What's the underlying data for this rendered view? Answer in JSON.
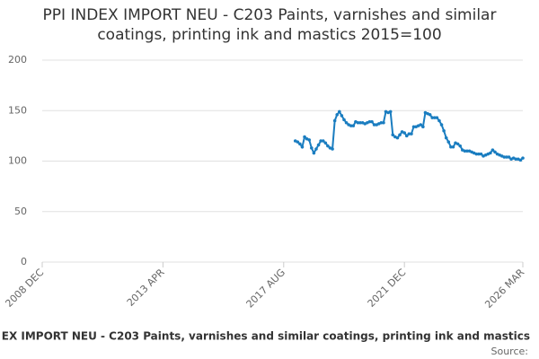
{
  "chart_data": {
    "type": "line",
    "title": "PPI INDEX IMPORT NEU - C203 Paints, varnishes and similar coatings, printing ink and mastics 2015=100",
    "x": [
      "2018 JAN",
      "2018 FEB",
      "2018 MAR",
      "2018 APR",
      "2018 MAY",
      "2018 JUN",
      "2018 JUL",
      "2018 AUG",
      "2018 SEP",
      "2018 OCT",
      "2018 NOV",
      "2018 DEC",
      "2019 JAN",
      "2019 FEB",
      "2019 MAR",
      "2019 APR",
      "2019 MAY",
      "2019 JUN",
      "2019 JUL",
      "2019 AUG",
      "2019 SEP",
      "2019 OCT",
      "2019 NOV",
      "2019 DEC",
      "2020 JAN",
      "2020 FEB",
      "2020 MAR",
      "2020 APR",
      "2020 MAY",
      "2020 JUN",
      "2020 JUL",
      "2020 AUG",
      "2020 SEP",
      "2020 OCT",
      "2020 NOV",
      "2020 DEC",
      "2021 JAN",
      "2021 FEB",
      "2021 MAR",
      "2021 APR",
      "2021 MAY",
      "2021 JUN",
      "2021 JUL",
      "2021 AUG",
      "2021 SEP",
      "2021 OCT",
      "2021 NOV",
      "2021 DEC",
      "2022 JAN",
      "2022 FEB",
      "2022 MAR",
      "2022 APR",
      "2022 MAY",
      "2022 JUN",
      "2022 JUL",
      "2022 AUG",
      "2022 SEP",
      "2022 OCT",
      "2022 NOV",
      "2022 DEC",
      "2023 JAN",
      "2023 FEB",
      "2023 MAR",
      "2023 APR",
      "2023 MAY",
      "2023 JUN",
      "2023 JUL",
      "2023 AUG",
      "2023 SEP",
      "2023 OCT",
      "2023 NOV",
      "2023 DEC",
      "2024 JAN",
      "2024 FEB",
      "2024 MAR",
      "2024 APR",
      "2024 MAY",
      "2024 JUN",
      "2024 JUL",
      "2024 AUG",
      "2024 SEP",
      "2024 OCT",
      "2024 NOV",
      "2024 DEC",
      "2025 JAN",
      "2025 FEB",
      "2025 MAR",
      "2025 APR",
      "2025 MAY",
      "2025 JUN",
      "2025 JUL",
      "2025 AUG",
      "2025 SEP",
      "2025 OCT",
      "2025 NOV",
      "2025 DEC",
      "2026 JAN",
      "2026 FEB",
      "2026 MAR"
    ],
    "series": [
      {
        "name": "EX IMPORT NEU - C203 Paints, varnishes and similar coatings, printing ink and mastics",
        "color": "#1a7dc0",
        "values": [
          120,
          119,
          117,
          114,
          124,
          122,
          121,
          113,
          108,
          112,
          116,
          120,
          120,
          118,
          115,
          113,
          112,
          140,
          146,
          149,
          145,
          141,
          138,
          136,
          135,
          135,
          139,
          138,
          138,
          138,
          137,
          138,
          139,
          139,
          136,
          136,
          137,
          138,
          138,
          149,
          148,
          149,
          126,
          124,
          123,
          126,
          129,
          128,
          125,
          127,
          127,
          134,
          134,
          135,
          136,
          134,
          148,
          147,
          146,
          143,
          143,
          143,
          140,
          136,
          130,
          123,
          119,
          114,
          114,
          118,
          117,
          115,
          111,
          110,
          110,
          110,
          109,
          108,
          107,
          107,
          107,
          105,
          106,
          107,
          108,
          111,
          109,
          107,
          106,
          105,
          104,
          104,
          104,
          102,
          103,
          102,
          102,
          101,
          103
        ]
      }
    ],
    "xlim": [
      "2008 DEC",
      "2026 MAR"
    ],
    "xticks": [
      "2008 DEC",
      "2013 APR",
      "2017 AUG",
      "2021 DEC",
      "2026 MAR"
    ],
    "ylim": [
      0,
      200
    ],
    "yticks": [
      0,
      50,
      100,
      150,
      200
    ],
    "grid": true,
    "source": "Source:"
  }
}
